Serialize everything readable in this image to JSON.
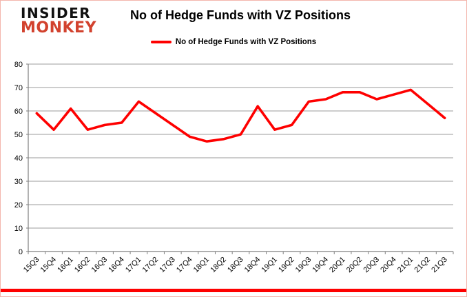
{
  "page": {
    "background": "#ffffff",
    "frame_border_color": "#f3b6ac",
    "bottom_bar_color": "#fe0000"
  },
  "logo": {
    "line1": "INSIDER",
    "line2": "MONKEY",
    "line1_color": "#111111",
    "line2_color": "#d2422e"
  },
  "header": {
    "title": "No of Hedge Funds with VZ Positions"
  },
  "legend": {
    "label": "No of Hedge Funds with VZ Positions",
    "swatch_color": "#fe0000"
  },
  "chart_data": {
    "type": "line",
    "title": "No of Hedge Funds with VZ Positions",
    "categories": [
      "15Q3",
      "15Q4",
      "16Q1",
      "16Q2",
      "16Q3",
      "16Q4",
      "17Q1",
      "17Q2",
      "17Q3",
      "17Q4",
      "18Q1",
      "18Q2",
      "18Q3",
      "18Q4",
      "19Q1",
      "19Q2",
      "19Q3",
      "19Q4",
      "20Q1",
      "20Q2",
      "20Q3",
      "20Q4",
      "21Q1",
      "21Q2",
      "21Q3"
    ],
    "series": [
      {
        "name": "No of Hedge Funds with VZ Positions",
        "color": "#fe0000",
        "values": [
          59,
          52,
          61,
          52,
          54,
          55,
          64,
          59,
          54,
          49,
          47,
          48,
          50,
          62,
          52,
          54,
          64,
          65,
          68,
          68,
          65,
          67,
          69,
          63,
          57
        ]
      }
    ],
    "xlabel": "",
    "ylabel": "",
    "ylim": [
      0,
      80
    ],
    "y_ticks": [
      0,
      10,
      20,
      30,
      40,
      50,
      60,
      70,
      80
    ],
    "grid": true,
    "legend_position": "top",
    "gridline_color": "#9b9b9b",
    "axis_color": "#7f7f7f",
    "tick_label_color": "#000000",
    "tick_font_size": 11
  }
}
